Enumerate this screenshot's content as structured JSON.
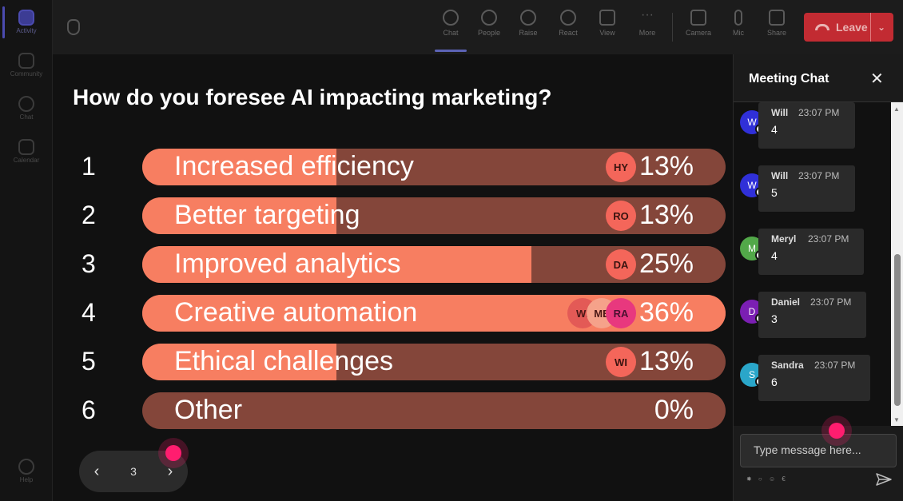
{
  "rail": {
    "items": [
      {
        "label": "Activity"
      },
      {
        "label": "Community"
      },
      {
        "label": "Chat"
      },
      {
        "label": "Calendar"
      },
      {
        "label": "Help"
      }
    ]
  },
  "toolbar": {
    "buttons": [
      {
        "label": "Chat",
        "icon": "chat-icon"
      },
      {
        "label": "People",
        "icon": "people-icon"
      },
      {
        "label": "Raise",
        "icon": "hand-icon"
      },
      {
        "label": "React",
        "icon": "smile-icon"
      },
      {
        "label": "View",
        "icon": "grid-icon"
      },
      {
        "label": "More",
        "icon": "more-icon"
      },
      {
        "label": "Camera",
        "icon": "camera-icon"
      },
      {
        "label": "Mic",
        "icon": "mic-icon"
      },
      {
        "label": "Share",
        "icon": "share-icon"
      }
    ],
    "leave_label": "Leave"
  },
  "poll": {
    "question": "How do you foresee AI impacting marketing?",
    "options": [
      {
        "num": "1",
        "label": "Increased efficiency",
        "percent_text": "13%",
        "fraction": 0.13,
        "voters": [
          "HY"
        ]
      },
      {
        "num": "2",
        "label": "Better targeting",
        "percent_text": "13%",
        "fraction": 0.13,
        "voters": [
          "RO"
        ]
      },
      {
        "num": "3",
        "label": "Improved analytics",
        "percent_text": "25%",
        "fraction": 0.25,
        "voters": [
          "DA"
        ]
      },
      {
        "num": "4",
        "label": "Creative automation",
        "percent_text": "36%",
        "fraction": 0.36,
        "voters": [
          "WI",
          "ME",
          "RA"
        ]
      },
      {
        "num": "5",
        "label": "Ethical challenges",
        "percent_text": "13%",
        "fraction": 0.13,
        "voters": [
          "WI"
        ]
      },
      {
        "num": "6",
        "label": "Other",
        "percent_text": "0%",
        "fraction": 0.0,
        "voters": []
      }
    ],
    "page": "3"
  },
  "chat": {
    "title": "Meeting Chat",
    "messages": [
      {
        "initial": "W",
        "name": "Will",
        "time": "23:07 PM",
        "body": "4",
        "color": "#3030d8"
      },
      {
        "initial": "W",
        "name": "Will",
        "time": "23:07 PM",
        "body": "5",
        "color": "#3030d8"
      },
      {
        "initial": "M",
        "name": "Meryl",
        "time": "23:07 PM",
        "body": "4",
        "color": "#52a849"
      },
      {
        "initial": "D",
        "name": "Daniel",
        "time": "23:07 PM",
        "body": "3",
        "color": "#7b1fb3"
      },
      {
        "initial": "S",
        "name": "Sandra",
        "time": "23:07 PM",
        "body": "6",
        "color": "#2aa6c9"
      }
    ],
    "input_placeholder": "Type message here..."
  },
  "colors": {
    "bar_fill": "#f77e61",
    "bar_track": "#84463a",
    "leave": "#c22b32",
    "cursor": "#ff1d6f"
  }
}
